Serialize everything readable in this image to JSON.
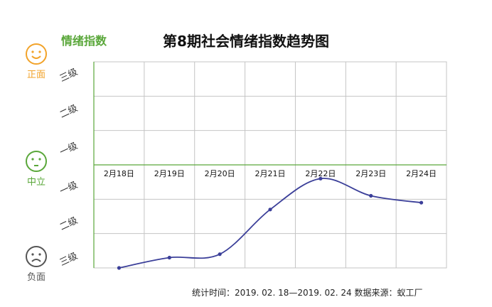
{
  "title": "第8期社会情绪指数趋势图",
  "y_title": "情绪指数",
  "faces": {
    "positive": {
      "label": "正面",
      "icon": "smiley-face-icon",
      "color": "#f2a32a"
    },
    "neutral": {
      "label": "中立",
      "icon": "neutral-face-icon",
      "color": "#5aa73a"
    },
    "negative": {
      "label": "负面",
      "icon": "frown-face-icon",
      "color": "#555555"
    }
  },
  "y_levels": [
    "三级",
    "二级",
    "一级",
    "一级",
    "二级",
    "三级"
  ],
  "footer": "统计时间：2019. 02. 18—2019. 02. 24  数据来源：蚁工厂",
  "colors": {
    "line": "#3b3f99",
    "grid": "#c4c4c4",
    "baseline": "#5aa73a",
    "accent": "#5aa73a"
  },
  "chart_data": {
    "type": "line",
    "title": "第8期社会情绪指数趋势图",
    "ylabel": "情绪指数",
    "categories": [
      "2月18日",
      "2月19日",
      "2月20日",
      "2月21日",
      "2月22日",
      "2月23日",
      "2月24日"
    ],
    "values": [
      -3,
      -2.7,
      -2.6,
      -1.3,
      -0.4,
      -0.9,
      -1.1
    ],
    "ylim": [
      -3,
      3
    ],
    "y_tick_labels": [
      "三级",
      "二级",
      "一级",
      "一级",
      "二级",
      "三级"
    ],
    "grid": true
  }
}
